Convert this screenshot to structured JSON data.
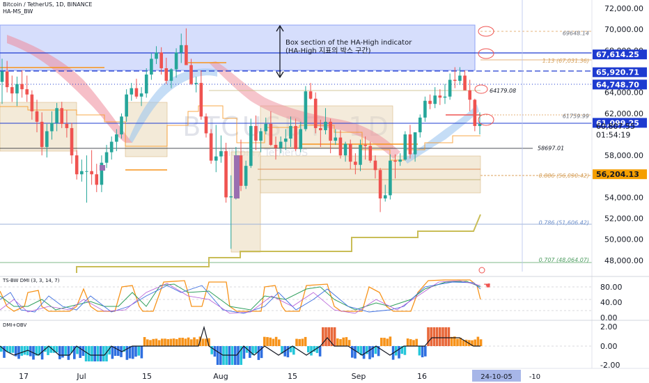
{
  "header": {
    "title": "Bitcoin / TetherUS, 1D, BINANCE",
    "indicator": "HA-MS_BW"
  },
  "colors": {
    "bull": "#26a69a",
    "bear": "#ef5350",
    "box": "#c8d3fb",
    "orange": "#f7931a",
    "olive": "#c9bd57",
    "fib": "#e4b37b",
    "label_blue": "#1e3bd0",
    "label_orange": "#f59f00",
    "label_dark": "#131722"
  },
  "annotation": {
    "line1": "Box section of the HA-High indicator",
    "line2": "(HA-High 지표의 박스 구간)"
  },
  "watermark": {
    "big": "BTCUSDT, 1D",
    "small": "Bitcoin / TetherUS"
  },
  "chart_data": {
    "type": "candlestick",
    "price_axis": {
      "range": [
        46600,
        72800
      ],
      "ticks": [
        "72,000.00",
        "70,000.00",
        "68,000.00",
        "64,000.00",
        "62,000.00",
        "58,000.00",
        "54,000.00",
        "52,000.00",
        "50,000.00",
        "48,000.00"
      ],
      "tick_values": [
        72000,
        70000,
        68000,
        64000,
        62000,
        58000,
        54000,
        52000,
        50000,
        48000
      ]
    },
    "date_axis": {
      "labels": [
        "17",
        "Jul",
        "15",
        "Aug",
        "15",
        "Sep",
        "16"
      ],
      "current": "24-10-05",
      "next": "-10"
    },
    "price_labels": [
      {
        "text": "67,614.25",
        "value": 67614.25,
        "style": "blue"
      },
      {
        "text": "65,920.71",
        "value": 65920.71,
        "style": "blue"
      },
      {
        "text": "64,748.70",
        "value": 64748.7,
        "style": "blue"
      },
      {
        "text": "61,099.25",
        "value": 61099.25,
        "style": "blue"
      },
      {
        "text": "60,807.55",
        "value": 60807.55,
        "style": "plain"
      },
      {
        "text": "01:54:19",
        "value": 59950,
        "style": "plain"
      },
      {
        "text": "56,204.13",
        "value": 56204.13,
        "style": "orange"
      }
    ],
    "level_labels": [
      {
        "text": "69648.14",
        "value": 69648.14
      },
      {
        "text": "1.13 (67,031.36)",
        "value": 67031.36
      },
      {
        "text": "64179.08",
        "value": 64179.08
      },
      {
        "text": "61759.99",
        "value": 61759.99
      },
      {
        "text": "58697.01",
        "value": 58697.01
      },
      {
        "text": "0.886 (56,090.42)",
        "value": 56090.42
      },
      {
        "text": "0.786 (51,606.42)",
        "value": 51606.42
      },
      {
        "text": "0.707 (48,064.07)",
        "value": 48064.07
      }
    ],
    "candles": [
      [
        65000,
        67200,
        62900,
        66000
      ],
      [
        66000,
        67000,
        64000,
        64500
      ],
      [
        64500,
        65600,
        63100,
        63900
      ],
      [
        63900,
        65500,
        62700,
        64800
      ],
      [
        64800,
        66100,
        63500,
        64300
      ],
      [
        64300,
        65600,
        63100,
        63800
      ],
      [
        63800,
        64200,
        61400,
        62200
      ],
      [
        62200,
        63300,
        60200,
        61200
      ],
      [
        61200,
        62100,
        58000,
        58800
      ],
      [
        58800,
        61000,
        57800,
        60300
      ],
      [
        60300,
        62200,
        59500,
        61100
      ],
      [
        61100,
        63000,
        60300,
        62500
      ],
      [
        62500,
        63100,
        60600,
        61000
      ],
      [
        61000,
        62300,
        59700,
        60600
      ],
      [
        60600,
        61100,
        57200,
        58000
      ],
      [
        58000,
        58500,
        55700,
        56200
      ],
      [
        56200,
        57600,
        55500,
        56500
      ],
      [
        56500,
        58000,
        53500,
        56500
      ],
      [
        56500,
        58500,
        55200,
        56200
      ],
      [
        56200,
        57200,
        54500,
        55200
      ],
      [
        55200,
        58000,
        54500,
        57300
      ],
      [
        57300,
        59000,
        56800,
        58300
      ],
      [
        58300,
        59800,
        57600,
        59300
      ],
      [
        59300,
        60500,
        58400,
        60000
      ],
      [
        60000,
        62000,
        59600,
        61700
      ],
      [
        61700,
        64300,
        61200,
        63800
      ],
      [
        63800,
        64900,
        63200,
        64400
      ],
      [
        64400,
        65300,
        63400,
        63600
      ],
      [
        63600,
        64500,
        62700,
        63900
      ],
      [
        63900,
        66300,
        63500,
        65700
      ],
      [
        65700,
        67700,
        65200,
        67200
      ],
      [
        67200,
        68400,
        66700,
        67800
      ],
      [
        67800,
        68300,
        65700,
        66300
      ],
      [
        66300,
        67300,
        64800,
        65100
      ],
      [
        65100,
        66300,
        64400,
        66200
      ],
      [
        66200,
        68200,
        65400,
        67800
      ],
      [
        67800,
        69600,
        66800,
        68500
      ],
      [
        68500,
        70100,
        66600,
        66600
      ],
      [
        66600,
        67200,
        64700,
        64800
      ],
      [
        64800,
        65500,
        64000,
        64900
      ],
      [
        64900,
        66100,
        61400,
        61700
      ],
      [
        61700,
        62000,
        59700,
        60100
      ],
      [
        60100,
        60500,
        57200,
        57500
      ],
      [
        57500,
        60900,
        56400,
        57900
      ],
      [
        57900,
        59900,
        57300,
        58400
      ],
      [
        58400,
        59200,
        53500,
        54000
      ],
      [
        54000,
        56100,
        49100,
        54100
      ],
      [
        54100,
        58800,
        53800,
        58000
      ],
      [
        58000,
        59500,
        54600,
        55100
      ],
      [
        55100,
        57500,
        54800,
        57000
      ],
      [
        57000,
        61500,
        56800,
        60800
      ],
      [
        60800,
        61800,
        58500,
        59400
      ],
      [
        59400,
        60600,
        58300,
        60300
      ],
      [
        60300,
        61600,
        60000,
        61000
      ],
      [
        61000,
        62200,
        58900,
        59000
      ],
      [
        59000,
        59800,
        57600,
        58700
      ],
      [
        58700,
        59800,
        58200,
        59300
      ],
      [
        59300,
        60500,
        58500,
        59600
      ],
      [
        59600,
        61700,
        58800,
        60800
      ],
      [
        60800,
        61500,
        58400,
        58600
      ],
      [
        58600,
        61200,
        58300,
        60500
      ],
      [
        60500,
        64600,
        60300,
        64100
      ],
      [
        64100,
        64900,
        63300,
        63400
      ],
      [
        63400,
        64000,
        60100,
        60600
      ],
      [
        60600,
        61400,
        58800,
        60400
      ],
      [
        60400,
        62500,
        60000,
        61200
      ],
      [
        61200,
        61500,
        58200,
        59400
      ],
      [
        59400,
        60500,
        59000,
        59700
      ],
      [
        59700,
        60400,
        57700,
        58000
      ],
      [
        58000,
        59300,
        57400,
        59100
      ],
      [
        59100,
        59500,
        56700,
        57400
      ],
      [
        57400,
        58200,
        56200,
        57100
      ],
      [
        57100,
        59500,
        56500,
        59000
      ],
      [
        59000,
        59800,
        57600,
        58900
      ],
      [
        58900,
        59300,
        57300,
        57500
      ],
      [
        57500,
        58000,
        55800,
        56600
      ],
      [
        56600,
        56800,
        52600,
        53900
      ],
      [
        53900,
        55200,
        53600,
        54200
      ],
      [
        54200,
        58100,
        53800,
        57500
      ],
      [
        57500,
        58100,
        55800,
        57400
      ],
      [
        57400,
        58200,
        57000,
        57600
      ],
      [
        57600,
        60300,
        57500,
        60000
      ],
      [
        60000,
        60900,
        57700,
        58100
      ],
      [
        58100,
        60200,
        57400,
        60200
      ],
      [
        60200,
        61900,
        59700,
        61600
      ],
      [
        61600,
        63600,
        61200,
        63200
      ],
      [
        63200,
        63800,
        62400,
        62900
      ],
      [
        62900,
        64500,
        62500,
        63700
      ],
      [
        63700,
        64300,
        62800,
        63500
      ],
      [
        63500,
        64800,
        62900,
        63600
      ],
      [
        63600,
        65800,
        63300,
        65200
      ],
      [
        65200,
        66400,
        64400,
        65100
      ],
      [
        65100,
        66400,
        64700,
        65600
      ],
      [
        65600,
        66100,
        64200,
        64200
      ],
      [
        64200,
        65200,
        62200,
        63300
      ],
      [
        63300,
        63400,
        60300,
        60800
      ],
      [
        60800,
        62100,
        60000,
        61000
      ]
    ]
  },
  "dmi_pane": {
    "label": "TS-BW DMI (3, 3, 14, 7)",
    "ticks": [
      "80.00",
      "40.00",
      "0.00"
    ]
  },
  "obv_pane": {
    "label": "DMI+OBV",
    "ticks": [
      "2.00",
      "0.00",
      "-2.00"
    ]
  }
}
